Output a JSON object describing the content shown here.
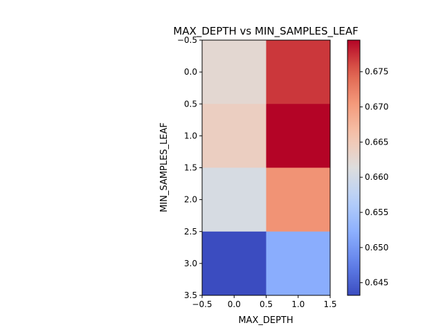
{
  "chart_data": {
    "type": "heatmap",
    "title": "MAX_DEPTH vs MIN_SAMPLES_LEAF",
    "xlabel": "MAX_DEPTH",
    "ylabel": "MIN_SAMPLES_LEAF",
    "xlim": [
      -0.5,
      1.5
    ],
    "ylim": [
      3.5,
      -0.5
    ],
    "x_ticks": [
      "−0.5",
      "0.0",
      "0.5",
      "1.0",
      "1.5"
    ],
    "y_ticks": [
      "−0.5",
      "0.0",
      "0.5",
      "1.0",
      "1.5",
      "2.0",
      "2.5",
      "3.0",
      "3.5"
    ],
    "values": [
      [
        0.6625,
        0.677
      ],
      [
        0.664,
        0.6795
      ],
      [
        0.6605,
        0.671
      ],
      [
        0.6432,
        0.652
      ]
    ],
    "colormap": "coolwarm",
    "colorbar": {
      "vmin": 0.6432,
      "vmax": 0.6795,
      "ticks": [
        "0.645",
        "0.650",
        "0.655",
        "0.660",
        "0.665",
        "0.670",
        "0.675"
      ],
      "tick_values": [
        0.645,
        0.65,
        0.655,
        0.66,
        0.665,
        0.67,
        0.675
      ]
    },
    "grid": false
  }
}
